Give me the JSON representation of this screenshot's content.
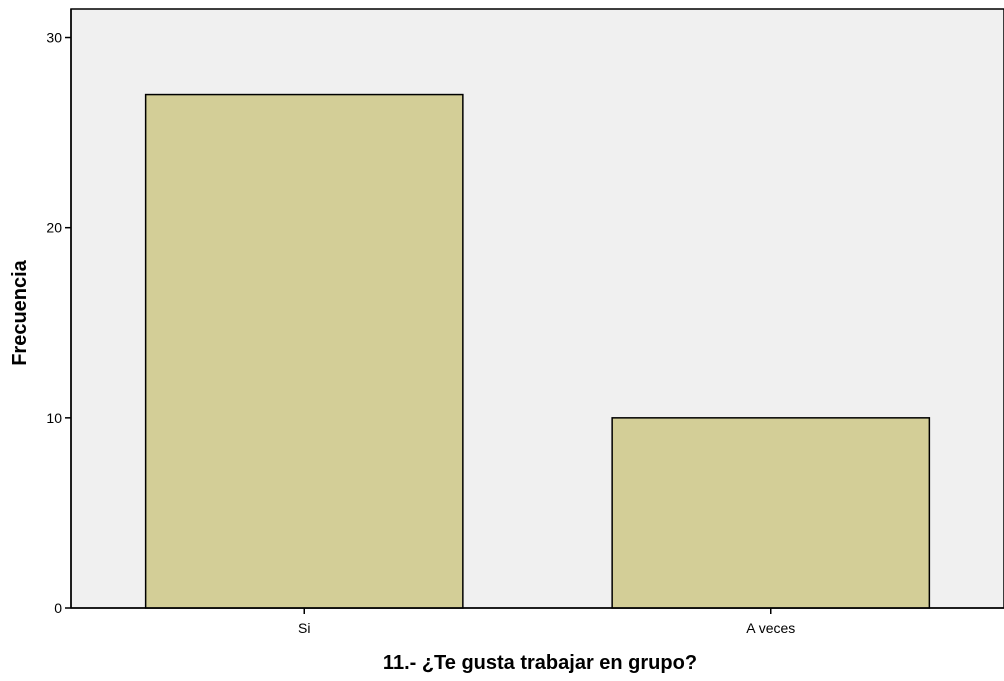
{
  "chart_data": {
    "type": "bar",
    "categories": [
      "Si",
      "A veces"
    ],
    "values": [
      27,
      10
    ],
    "xlabel": "11.- ¿Te gusta trabajar en grupo?",
    "ylabel": "Frecuencia",
    "ylim": [
      0,
      31.5
    ],
    "yticks": [
      "0",
      "10",
      "20",
      "30"
    ],
    "grid": false,
    "colors": {
      "plot_background": "#f0f0f0",
      "bar_fill": "#d3ce97",
      "bar_stroke": "#000000"
    }
  }
}
